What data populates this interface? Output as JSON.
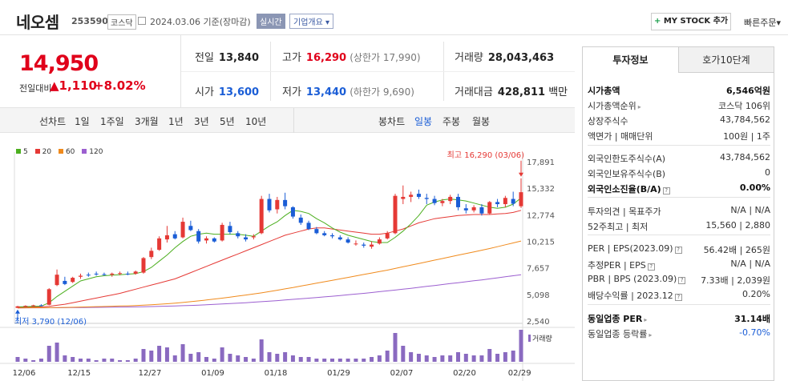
{
  "header": {
    "name": "네오셈",
    "code": "253590",
    "market": "코스닥",
    "date": "2024.03.06 기준(장마감)",
    "realtime": "실시간",
    "overview": "기업개요",
    "mystock_plus": "+",
    "mystock": "MY STOCK 추가",
    "quick_order": "빠른주문"
  },
  "price": {
    "now": "14,950",
    "change_label": "전일대비",
    "change": "▲1,110",
    "pct": "+8.02%"
  },
  "summary": {
    "prev_label": "전일",
    "prev": "13,840",
    "high_label": "고가",
    "high": "16,290",
    "upper_limit": "(상한가 17,990)",
    "volume_label": "거래량",
    "volume": "28,043,463",
    "open_label": "시가",
    "open": "13,600",
    "low_label": "저가",
    "low": "13,440",
    "lower_limit": "(하한가 9,690)",
    "amount_label": "거래대금",
    "amount": "428,811",
    "amount_unit": "백만"
  },
  "periods": {
    "line_label": "선차트",
    "line": [
      "1일",
      "1주일",
      "3개월",
      "1년",
      "3년",
      "5년",
      "10년"
    ],
    "candle_label": "봉차트",
    "candle": [
      "일봉",
      "주봉",
      "월봉"
    ],
    "active": "일봉"
  },
  "chart_data": {
    "type": "candlestick",
    "legend": [
      {
        "name": "5",
        "color": "#4caf1f"
      },
      {
        "name": "20",
        "color": "#e53935"
      },
      {
        "name": "60",
        "color": "#f08a1c"
      },
      {
        "name": "120",
        "color": "#9c5fd0"
      }
    ],
    "y_ticks": [
      17891,
      15332,
      12774,
      10215,
      7657,
      5098,
      2540
    ],
    "y_tick_labels": [
      "17,891",
      "15,332",
      "12,774",
      "10,215",
      "7,657",
      "5,098",
      "2,540"
    ],
    "ylim": [
      2540,
      17891
    ],
    "x_labels": [
      "12/06",
      "12/15",
      "12/27",
      "01/09",
      "01/18",
      "01/29",
      "02/07",
      "02/20",
      "02/29"
    ],
    "max_label": "최고 16,290 (03/06)",
    "min_label": "최저 3,790 (12/06)",
    "volume_label": "거래량",
    "candles": [
      {
        "o": 3800,
        "h": 4000,
        "l": 3790,
        "c": 3950
      },
      {
        "o": 3950,
        "h": 4050,
        "l": 3900,
        "c": 4000
      },
      {
        "o": 4000,
        "h": 4100,
        "l": 3950,
        "c": 4050
      },
      {
        "o": 4050,
        "h": 4150,
        "l": 3980,
        "c": 4020
      },
      {
        "o": 4100,
        "h": 5700,
        "l": 4050,
        "c": 5600
      },
      {
        "o": 6000,
        "h": 7500,
        "l": 5900,
        "c": 7000
      },
      {
        "o": 6400,
        "h": 6800,
        "l": 6000,
        "c": 6100
      },
      {
        "o": 6300,
        "h": 6800,
        "l": 6200,
        "c": 6700
      },
      {
        "o": 6800,
        "h": 7100,
        "l": 6600,
        "c": 6900
      },
      {
        "o": 7000,
        "h": 7200,
        "l": 6800,
        "c": 6950
      },
      {
        "o": 7100,
        "h": 7300,
        "l": 6900,
        "c": 7050
      },
      {
        "o": 7050,
        "h": 7200,
        "l": 6900,
        "c": 7000
      },
      {
        "o": 7000,
        "h": 7200,
        "l": 6800,
        "c": 7100
      },
      {
        "o": 7100,
        "h": 7300,
        "l": 6950,
        "c": 7150
      },
      {
        "o": 7100,
        "h": 7300,
        "l": 6950,
        "c": 7050
      },
      {
        "o": 7100,
        "h": 7400,
        "l": 7000,
        "c": 7300
      },
      {
        "o": 7200,
        "h": 8700,
        "l": 7100,
        "c": 8600
      },
      {
        "o": 8700,
        "h": 9600,
        "l": 8500,
        "c": 9300
      },
      {
        "o": 9400,
        "h": 10700,
        "l": 9300,
        "c": 10500
      },
      {
        "o": 10400,
        "h": 11700,
        "l": 10100,
        "c": 10800
      },
      {
        "o": 10900,
        "h": 11200,
        "l": 10400,
        "c": 10500
      },
      {
        "o": 10600,
        "h": 12500,
        "l": 10500,
        "c": 12100
      },
      {
        "o": 11700,
        "h": 12200,
        "l": 11200,
        "c": 11300
      },
      {
        "o": 11200,
        "h": 11400,
        "l": 10000,
        "c": 10200
      },
      {
        "o": 10300,
        "h": 10700,
        "l": 10000,
        "c": 10500
      },
      {
        "o": 10500,
        "h": 10600,
        "l": 10100,
        "c": 10200
      },
      {
        "o": 10300,
        "h": 12000,
        "l": 10200,
        "c": 11800
      },
      {
        "o": 11700,
        "h": 12100,
        "l": 10900,
        "c": 11100
      },
      {
        "o": 11000,
        "h": 11200,
        "l": 10500,
        "c": 10700
      },
      {
        "o": 10600,
        "h": 10900,
        "l": 10200,
        "c": 10400
      },
      {
        "o": 10600,
        "h": 10900,
        "l": 10400,
        "c": 10700
      },
      {
        "o": 11000,
        "h": 14600,
        "l": 10900,
        "c": 14300
      },
      {
        "o": 14300,
        "h": 14800,
        "l": 13000,
        "c": 13200
      },
      {
        "o": 13300,
        "h": 14500,
        "l": 12900,
        "c": 14200
      },
      {
        "o": 14200,
        "h": 14900,
        "l": 13300,
        "c": 13600
      },
      {
        "o": 13500,
        "h": 13600,
        "l": 12400,
        "c": 12600
      },
      {
        "o": 12500,
        "h": 12800,
        "l": 11800,
        "c": 12000
      },
      {
        "o": 12000,
        "h": 12200,
        "l": 11300,
        "c": 11400
      },
      {
        "o": 11400,
        "h": 11600,
        "l": 10900,
        "c": 11000
      },
      {
        "o": 11000,
        "h": 11200,
        "l": 10700,
        "c": 10800
      },
      {
        "o": 10800,
        "h": 11000,
        "l": 10500,
        "c": 10700
      },
      {
        "o": 10600,
        "h": 10800,
        "l": 10300,
        "c": 10400
      },
      {
        "o": 10400,
        "h": 10600,
        "l": 10000,
        "c": 10100
      },
      {
        "o": 10000,
        "h": 10300,
        "l": 9800,
        "c": 10000
      },
      {
        "o": 9900,
        "h": 10100,
        "l": 9600,
        "c": 9800
      },
      {
        "o": 9700,
        "h": 10200,
        "l": 9500,
        "c": 9900
      },
      {
        "o": 10000,
        "h": 10600,
        "l": 9900,
        "c": 10400
      },
      {
        "o": 10500,
        "h": 11200,
        "l": 10400,
        "c": 11000
      },
      {
        "o": 11000,
        "h": 14800,
        "l": 10900,
        "c": 14600
      },
      {
        "o": 14300,
        "h": 15600,
        "l": 13800,
        "c": 14500
      },
      {
        "o": 14500,
        "h": 15000,
        "l": 14000,
        "c": 14700
      },
      {
        "o": 14800,
        "h": 15200,
        "l": 14300,
        "c": 14500
      },
      {
        "o": 14400,
        "h": 14800,
        "l": 13800,
        "c": 14300
      },
      {
        "o": 14300,
        "h": 14600,
        "l": 13700,
        "c": 13900
      },
      {
        "o": 13900,
        "h": 14300,
        "l": 13600,
        "c": 14100
      },
      {
        "o": 14100,
        "h": 14700,
        "l": 13800,
        "c": 14500
      },
      {
        "o": 14500,
        "h": 14800,
        "l": 13200,
        "c": 13500
      },
      {
        "o": 13400,
        "h": 13800,
        "l": 12900,
        "c": 13200
      },
      {
        "o": 13200,
        "h": 13700,
        "l": 13000,
        "c": 13500
      },
      {
        "o": 13500,
        "h": 13800,
        "l": 12700,
        "c": 12900
      },
      {
        "o": 12900,
        "h": 14100,
        "l": 12800,
        "c": 14000
      },
      {
        "o": 14000,
        "h": 14300,
        "l": 13500,
        "c": 13800
      },
      {
        "o": 13800,
        "h": 14600,
        "l": 13500,
        "c": 14400
      },
      {
        "o": 14300,
        "h": 15000,
        "l": 13600,
        "c": 13840
      },
      {
        "o": 13600,
        "h": 16290,
        "l": 13440,
        "c": 14950
      }
    ],
    "volumes": [
      3,
      2,
      1,
      2,
      10,
      12,
      4,
      3,
      2,
      2,
      1,
      2,
      2,
      1,
      1,
      2,
      8,
      7,
      10,
      9,
      4,
      11,
      5,
      6,
      3,
      2,
      9,
      5,
      4,
      3,
      2,
      14,
      6,
      5,
      6,
      4,
      3,
      3,
      2,
      2,
      2,
      2,
      2,
      2,
      2,
      3,
      4,
      7,
      18,
      10,
      6,
      5,
      4,
      3,
      4,
      4,
      6,
      5,
      4,
      4,
      8,
      5,
      6,
      7,
      20
    ],
    "ma5": [
      3900,
      3920,
      3950,
      3970,
      4300,
      4900,
      5400,
      5900,
      6400,
      6600,
      6800,
      6900,
      6950,
      7000,
      7050,
      7100,
      7300,
      7700,
      8300,
      8900,
      9600,
      10200,
      10700,
      10900,
      11000,
      10900,
      10900,
      10900,
      10900,
      10800,
      10700,
      11200,
      11700,
      12100,
      12700,
      13200,
      13100,
      12900,
      12400,
      12000,
      11500,
      11100,
      10800,
      10600,
      10400,
      10200,
      10100,
      10100,
      10600,
      11200,
      11900,
      12700,
      13700,
      14000,
      14200,
      14300,
      14200,
      14100,
      13900,
      13700,
      13500,
      13400,
      13500,
      13800,
      14400
    ],
    "ma20": [
      3850,
      3870,
      3890,
      3900,
      3950,
      4050,
      4150,
      4300,
      4450,
      4600,
      4750,
      4900,
      5050,
      5200,
      5400,
      5600,
      5800,
      6000,
      6200,
      6400,
      6600,
      6900,
      7200,
      7500,
      7800,
      8100,
      8400,
      8700,
      9000,
      9300,
      9600,
      9900,
      10200,
      10500,
      10800,
      11000,
      11200,
      11400,
      11500,
      11500,
      11400,
      11300,
      11200,
      11100,
      11000,
      10900,
      10900,
      11000,
      11200,
      11400,
      11700,
      12000,
      12200,
      12400,
      12500,
      12600,
      12700,
      12750,
      12800,
      12800,
      12800,
      12850,
      12900,
      13000,
      13200
    ],
    "ma60": [
      3800,
      3805,
      3810,
      3815,
      3820,
      3830,
      3845,
      3860,
      3880,
      3900,
      3920,
      3940,
      3960,
      3980,
      4000,
      4030,
      4060,
      4100,
      4150,
      4200,
      4260,
      4320,
      4400,
      4480,
      4560,
      4650,
      4740,
      4840,
      4940,
      5040,
      5140,
      5250,
      5370,
      5500,
      5630,
      5760,
      5900,
      6040,
      6180,
      6320,
      6460,
      6600,
      6740,
      6880,
      7020,
      7160,
      7300,
      7440,
      7600,
      7760,
      7920,
      8080,
      8240,
      8400,
      8560,
      8720,
      8880,
      9040,
      9200,
      9360,
      9520,
      9700,
      9880,
      10060,
      10250
    ],
    "ma120": [
      3800,
      3802,
      3805,
      3808,
      3810,
      3815,
      3820,
      3825,
      3830,
      3840,
      3850,
      3860,
      3870,
      3880,
      3890,
      3900,
      3915,
      3930,
      3950,
      3970,
      3990,
      4010,
      4040,
      4070,
      4100,
      4140,
      4180,
      4220,
      4260,
      4300,
      4350,
      4400,
      4450,
      4500,
      4560,
      4620,
      4680,
      4740,
      4800,
      4860,
      4920,
      4990,
      5060,
      5130,
      5200,
      5280,
      5360,
      5440,
      5520,
      5600,
      5690,
      5780,
      5870,
      5960,
      6050,
      6140,
      6230,
      6320,
      6410,
      6500,
      6600,
      6700,
      6800,
      6900,
      7000
    ]
  },
  "panel": {
    "tabs": [
      "투자정보",
      "호가10단계"
    ],
    "rows": [
      {
        "l": "시가총액",
        "r": "6,546억원",
        "bold": true
      },
      {
        "l": "시가총액순위",
        "r": "코스닥 106위",
        "arrow": true
      },
      {
        "l": "상장주식수",
        "r": "43,784,562"
      },
      {
        "l": "액면가 | 매매단위",
        "r": "100원 | 1주"
      },
      {
        "l": "외국인한도주식수(A)",
        "r": "43,784,562"
      },
      {
        "l": "외국인보유주식수(B)",
        "r": "0"
      },
      {
        "l": "외국인소진율(B/A)",
        "r": "0.00%",
        "bold": true,
        "info": true
      },
      {
        "l": "투자의견 | 목표주가",
        "r": "N/A | N/A"
      },
      {
        "l": "52주최고 | 최저",
        "r": "15,560 | 2,880"
      },
      {
        "l": "PER | EPS(2023.09)",
        "r": "56.42배 | 265원",
        "info": true
      },
      {
        "l": "추정PER | EPS",
        "r": "N/A | N/A",
        "info": true
      },
      {
        "l": "PBR | BPS (2023.09)",
        "r": "7.33배 | 2,039원",
        "info": true
      },
      {
        "l": "배당수익률 | 2023.12",
        "r": "0.20%",
        "info": true
      },
      {
        "l": "동일업종 PER",
        "r": "31.14배",
        "bold": true,
        "arrow": true
      },
      {
        "l": "동일업종 등락률",
        "r": "-0.70%",
        "arrow": true,
        "neg": true
      }
    ]
  }
}
